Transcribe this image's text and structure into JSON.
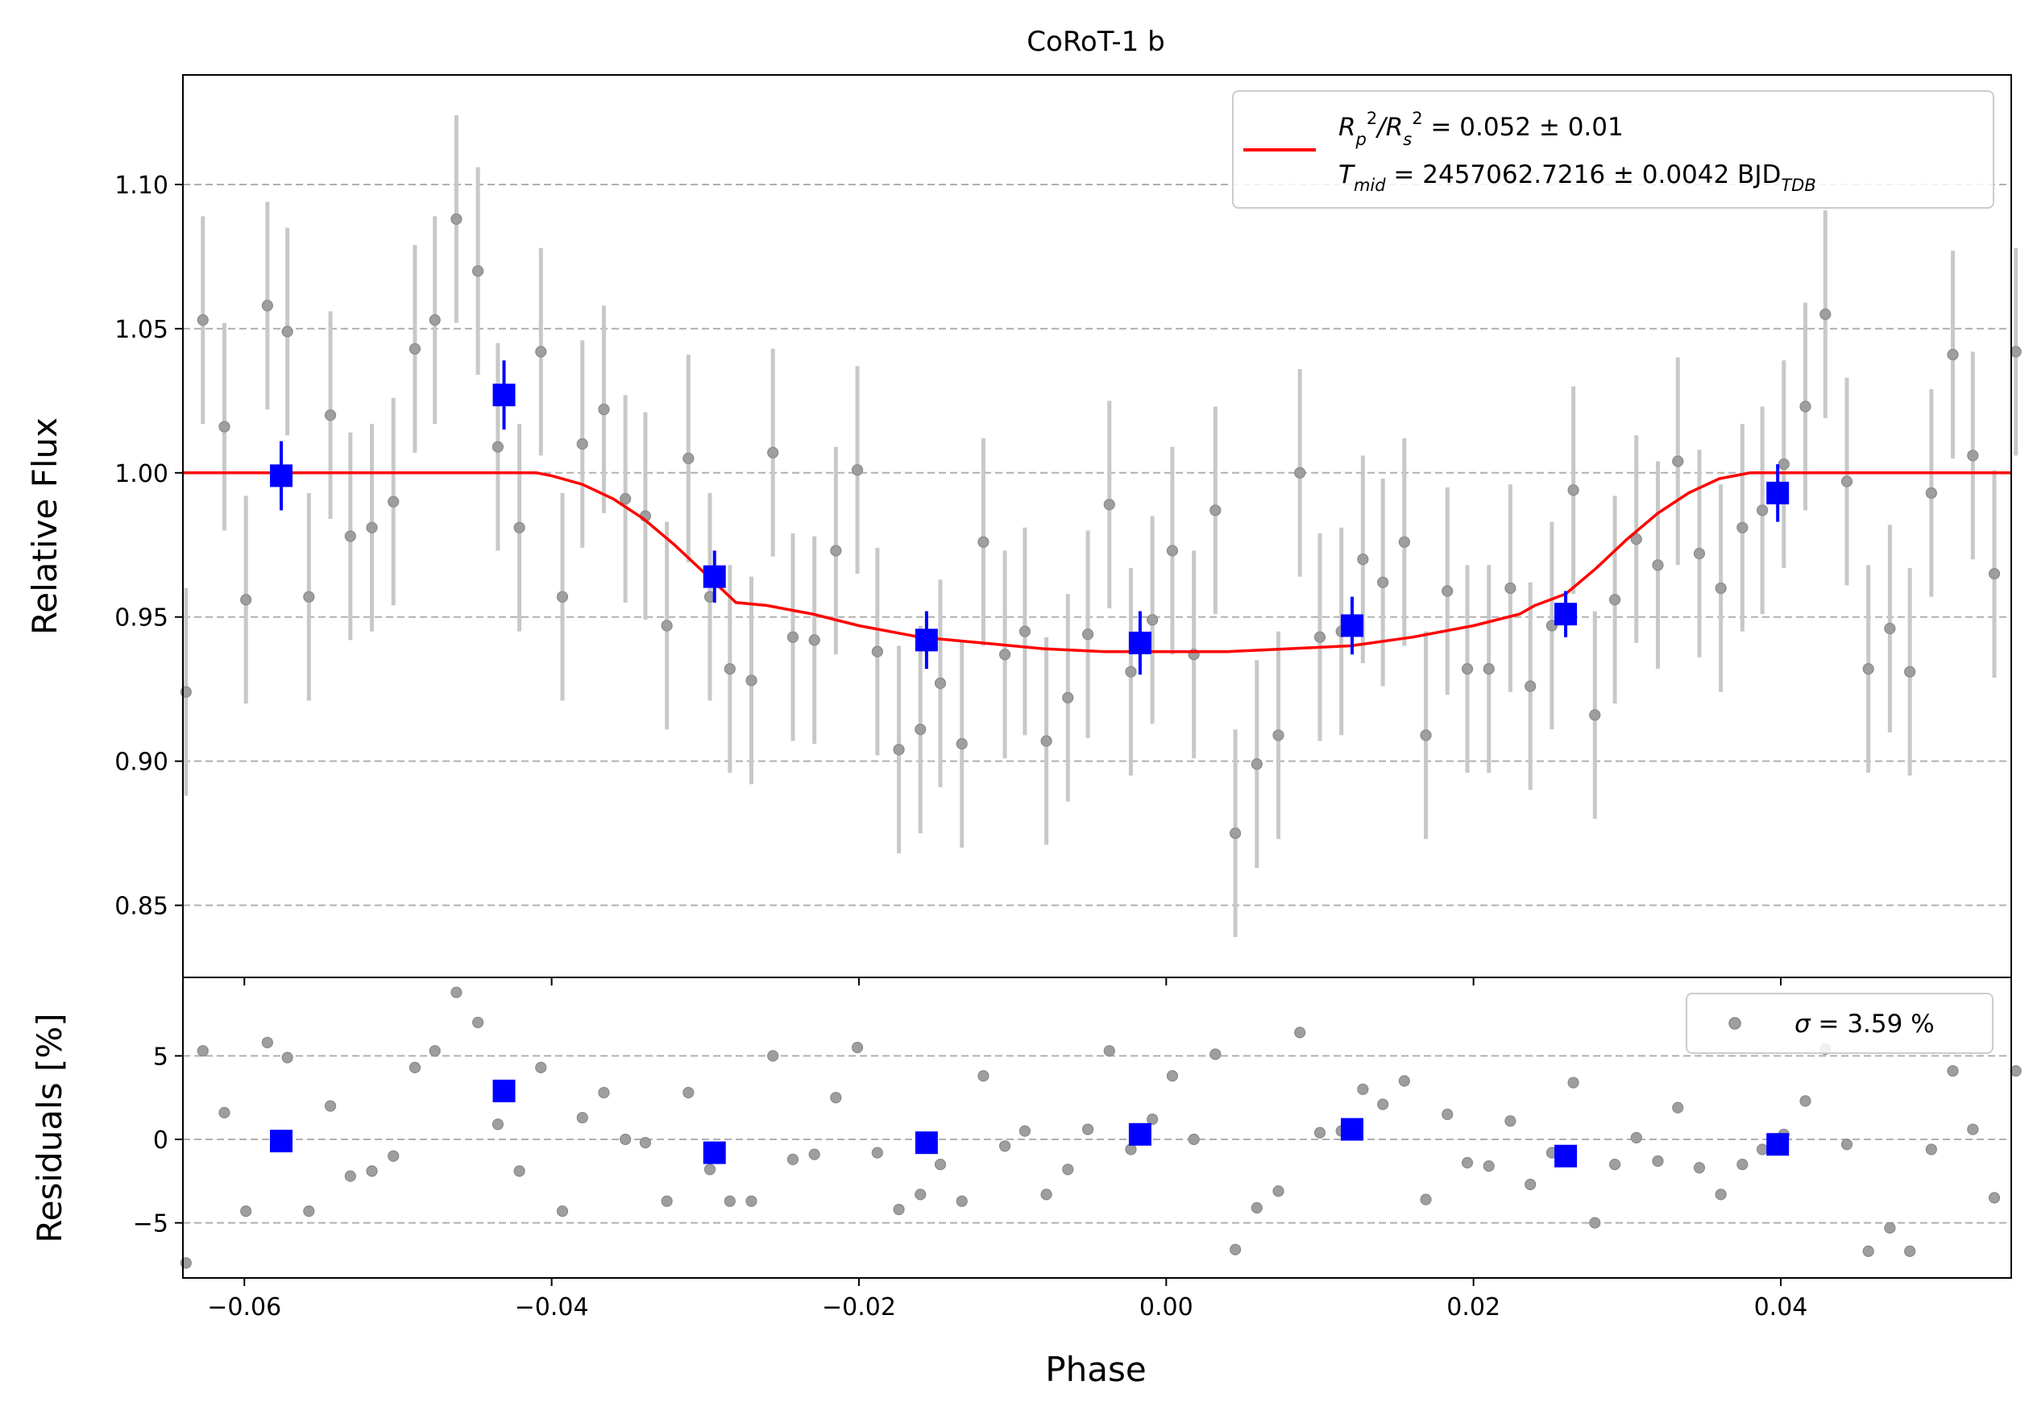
{
  "chart_data": [
    {
      "type": "scatter",
      "title": "CoRoT-1 b",
      "xlabel": "",
      "ylabel": "Relative Flux",
      "xlim": [
        -0.064,
        0.055
      ],
      "ylim": [
        0.825,
        1.138
      ],
      "x_ticks": [
        -0.06,
        -0.04,
        -0.02,
        0.0,
        0.02,
        0.04
      ],
      "y_ticks": [
        0.85,
        0.9,
        0.95,
        1.0,
        1.05,
        1.1
      ],
      "y_tick_labels": [
        "0.85",
        "0.90",
        "0.95",
        "1.00",
        "1.05",
        "1.10"
      ],
      "grid": "horizontal dashed",
      "legend_placement": "top-right",
      "legend": {
        "model_lines": [
          {
            "main": "R",
            "sub": "p",
            "sup": "2",
            "mid": "/R",
            "sub2": "s",
            "sup2": "2",
            "rest": " = 0.052 ± 0.01"
          },
          {
            "main": "T",
            "sub": "mid",
            "rest": " = 2457062.7216 ± 0.0042 BJD",
            "sub3": "TDB"
          }
        ]
      },
      "series": [
        {
          "kind": "raw",
          "color": "#9e9e9e",
          "errorbar_color": "#c8c8c8",
          "points": [
            [
              -0.0638,
              0.924,
              0.036
            ],
            [
              -0.0627,
              1.053,
              0.036
            ],
            [
              -0.0613,
              1.016,
              0.036
            ],
            [
              -0.0599,
              0.956,
              0.036
            ],
            [
              -0.0585,
              1.058,
              0.036
            ],
            [
              -0.0572,
              1.049,
              0.036
            ],
            [
              -0.0558,
              0.957,
              0.036
            ],
            [
              -0.0544,
              1.02,
              0.036
            ],
            [
              -0.0531,
              0.978,
              0.036
            ],
            [
              -0.0517,
              0.981,
              0.036
            ],
            [
              -0.0503,
              0.99,
              0.036
            ],
            [
              -0.0489,
              1.043,
              0.036
            ],
            [
              -0.0476,
              1.053,
              0.036
            ],
            [
              -0.0462,
              1.088,
              0.036
            ],
            [
              -0.0448,
              1.07,
              0.036
            ],
            [
              -0.0435,
              1.009,
              0.036
            ],
            [
              -0.0421,
              0.981,
              0.036
            ],
            [
              -0.0407,
              1.042,
              0.036
            ],
            [
              -0.0393,
              0.957,
              0.036
            ],
            [
              -0.038,
              1.01,
              0.036
            ],
            [
              -0.0366,
              1.022,
              0.036
            ],
            [
              -0.0352,
              0.991,
              0.036
            ],
            [
              -0.0339,
              0.985,
              0.036
            ],
            [
              -0.0325,
              0.947,
              0.036
            ],
            [
              -0.0311,
              1.005,
              0.036
            ],
            [
              -0.0297,
              0.957,
              0.036
            ],
            [
              -0.0284,
              0.932,
              0.036
            ],
            [
              -0.027,
              0.928,
              0.036
            ],
            [
              -0.0256,
              1.007,
              0.036
            ],
            [
              -0.0243,
              0.943,
              0.036
            ],
            [
              -0.0229,
              0.942,
              0.036
            ],
            [
              -0.0215,
              0.973,
              0.036
            ],
            [
              -0.0201,
              1.001,
              0.036
            ],
            [
              -0.0188,
              0.938,
              0.036
            ],
            [
              -0.0174,
              0.904,
              0.036
            ],
            [
              -0.016,
              0.911,
              0.036
            ],
            [
              -0.0147,
              0.927,
              0.036
            ],
            [
              -0.0133,
              0.906,
              0.036
            ],
            [
              -0.0119,
              0.976,
              0.036
            ],
            [
              -0.0105,
              0.937,
              0.036
            ],
            [
              -0.0092,
              0.945,
              0.036
            ],
            [
              -0.0078,
              0.907,
              0.036
            ],
            [
              -0.0064,
              0.922,
              0.036
            ],
            [
              -0.0051,
              0.944,
              0.036
            ],
            [
              -0.0037,
              0.989,
              0.036
            ],
            [
              -0.0023,
              0.931,
              0.036
            ],
            [
              -0.0009,
              0.949,
              0.036
            ],
            [
              0.0004,
              0.973,
              0.036
            ],
            [
              0.0018,
              0.937,
              0.036
            ],
            [
              0.0032,
              0.987,
              0.036
            ],
            [
              0.0045,
              0.875,
              0.036
            ],
            [
              0.0059,
              0.899,
              0.036
            ],
            [
              0.0073,
              0.909,
              0.036
            ],
            [
              0.0087,
              1.0,
              0.036
            ],
            [
              0.01,
              0.943,
              0.036
            ],
            [
              0.0114,
              0.945,
              0.036
            ],
            [
              0.0128,
              0.97,
              0.036
            ],
            [
              0.0141,
              0.962,
              0.036
            ],
            [
              0.0155,
              0.976,
              0.036
            ],
            [
              0.0169,
              0.909,
              0.036
            ],
            [
              0.0183,
              0.959,
              0.036
            ],
            [
              0.0196,
              0.932,
              0.036
            ],
            [
              0.021,
              0.932,
              0.036
            ],
            [
              0.0224,
              0.96,
              0.036
            ],
            [
              0.0237,
              0.926,
              0.036
            ],
            [
              0.0251,
              0.947,
              0.036
            ],
            [
              0.0265,
              0.994,
              0.036
            ],
            [
              0.0279,
              0.916,
              0.036
            ],
            [
              0.0292,
              0.956,
              0.036
            ],
            [
              0.0306,
              0.977,
              0.036
            ],
            [
              0.032,
              0.968,
              0.036
            ],
            [
              0.0333,
              1.004,
              0.036
            ],
            [
              0.0347,
              0.972,
              0.036
            ],
            [
              0.0361,
              0.96,
              0.036
            ],
            [
              0.0375,
              0.981,
              0.036
            ],
            [
              0.0388,
              0.987,
              0.036
            ],
            [
              0.0402,
              1.003,
              0.036
            ],
            [
              0.0416,
              1.023,
              0.036
            ],
            [
              0.0429,
              1.055,
              0.036
            ],
            [
              0.0443,
              0.997,
              0.036
            ],
            [
              0.0457,
              0.932,
              0.036
            ],
            [
              0.0471,
              0.946,
              0.036
            ],
            [
              0.0484,
              0.931,
              0.036
            ],
            [
              0.0498,
              0.993,
              0.036
            ],
            [
              0.0512,
              1.041,
              0.036
            ],
            [
              0.0525,
              1.006,
              0.036
            ],
            [
              0.0539,
              0.965,
              0.036
            ],
            [
              0.0553,
              1.042,
              0.036
            ]
          ]
        },
        {
          "kind": "binned",
          "color": "#0000ff",
          "points": [
            [
              -0.0576,
              0.999,
              0.012
            ],
            [
              -0.0431,
              1.027,
              0.012
            ],
            [
              -0.0294,
              0.964,
              0.009
            ],
            [
              -0.0156,
              0.942,
              0.01
            ],
            [
              -0.0017,
              0.941,
              0.011
            ],
            [
              0.0121,
              0.947,
              0.01
            ],
            [
              0.026,
              0.951,
              0.008
            ],
            [
              0.0398,
              0.993,
              0.01
            ]
          ]
        },
        {
          "kind": "model",
          "color": "#ff0000",
          "x": [
            -0.064,
            -0.042,
            -0.041,
            -0.04,
            -0.038,
            -0.036,
            -0.034,
            -0.032,
            -0.03,
            -0.028,
            -0.026,
            -0.024,
            -0.023,
            -0.02,
            -0.016,
            -0.012,
            -0.008,
            -0.004,
            0.0,
            0.004,
            0.008,
            0.012,
            0.016,
            0.02,
            0.023,
            0.024,
            0.026,
            0.028,
            0.03,
            0.032,
            0.034,
            0.036,
            0.038,
            0.04,
            0.041,
            0.042,
            0.055
          ],
          "y": [
            1.0,
            1.0,
            1.0,
            0.999,
            0.996,
            0.991,
            0.984,
            0.975,
            0.965,
            0.955,
            0.954,
            0.952,
            0.951,
            0.947,
            0.943,
            0.941,
            0.939,
            0.938,
            0.938,
            0.938,
            0.939,
            0.94,
            0.943,
            0.947,
            0.951,
            0.954,
            0.958,
            0.967,
            0.977,
            0.986,
            0.993,
            0.998,
            1.0,
            1.0,
            1.0,
            1.0,
            1.0
          ]
        }
      ]
    },
    {
      "type": "scatter",
      "title": "",
      "xlabel": "Phase",
      "ylabel": "Residuals [%]",
      "xlim": [
        -0.064,
        0.055
      ],
      "ylim": [
        -8.3,
        9.7
      ],
      "x_ticks": [
        -0.06,
        -0.04,
        -0.02,
        0.0,
        0.02,
        0.04
      ],
      "x_tick_labels": [
        "−0.06",
        "−0.04",
        "−0.02",
        "0.00",
        "0.02",
        "0.04"
      ],
      "y_ticks": [
        -5,
        0,
        5
      ],
      "y_tick_labels": [
        "−5",
        "0",
        "5"
      ],
      "grid": "horizontal dashed",
      "legend_placement": "top-right",
      "legend": {
        "sigma_symbol": "σ",
        "sigma_text": " = 3.59 %"
      },
      "series": [
        {
          "kind": "raw",
          "color": "#9e9e9e",
          "points": [
            [
              -0.0638,
              -7.4
            ],
            [
              -0.0627,
              5.3
            ],
            [
              -0.0613,
              1.6
            ],
            [
              -0.0599,
              -4.3
            ],
            [
              -0.0585,
              5.8
            ],
            [
              -0.0572,
              4.9
            ],
            [
              -0.0558,
              -4.3
            ],
            [
              -0.0544,
              2.0
            ],
            [
              -0.0531,
              -2.2
            ],
            [
              -0.0517,
              -1.9
            ],
            [
              -0.0503,
              -1.0
            ],
            [
              -0.0489,
              4.3
            ],
            [
              -0.0476,
              5.3
            ],
            [
              -0.0462,
              8.8
            ],
            [
              -0.0448,
              7.0
            ],
            [
              -0.0435,
              0.9
            ],
            [
              -0.0421,
              -1.9
            ],
            [
              -0.0407,
              4.3
            ],
            [
              -0.0393,
              -4.3
            ],
            [
              -0.038,
              1.3
            ],
            [
              -0.0366,
              2.8
            ],
            [
              -0.0352,
              0.0
            ],
            [
              -0.0339,
              -0.2
            ],
            [
              -0.0325,
              -3.7
            ],
            [
              -0.0311,
              2.8
            ],
            [
              -0.0297,
              -1.8
            ],
            [
              -0.0284,
              -3.7
            ],
            [
              -0.027,
              -3.7
            ],
            [
              -0.0256,
              5.0
            ],
            [
              -0.0243,
              -1.2
            ],
            [
              -0.0229,
              -0.9
            ],
            [
              -0.0215,
              2.5
            ],
            [
              -0.0201,
              5.5
            ],
            [
              -0.0188,
              -0.8
            ],
            [
              -0.0174,
              -4.2
            ],
            [
              -0.016,
              -3.3
            ],
            [
              -0.0147,
              -1.5
            ],
            [
              -0.0133,
              -3.7
            ],
            [
              -0.0119,
              3.8
            ],
            [
              -0.0105,
              -0.4
            ],
            [
              -0.0092,
              0.5
            ],
            [
              -0.0078,
              -3.3
            ],
            [
              -0.0064,
              -1.8
            ],
            [
              -0.0051,
              0.6
            ],
            [
              -0.0037,
              5.3
            ],
            [
              -0.0023,
              -0.6
            ],
            [
              -0.0009,
              1.2
            ],
            [
              0.0004,
              3.8
            ],
            [
              0.0018,
              0.0
            ],
            [
              0.0032,
              5.1
            ],
            [
              0.0045,
              -6.6
            ],
            [
              0.0059,
              -4.1
            ],
            [
              0.0073,
              -3.1
            ],
            [
              0.0087,
              6.4
            ],
            [
              0.01,
              0.4
            ],
            [
              0.0114,
              0.5
            ],
            [
              0.0128,
              3.0
            ],
            [
              0.0141,
              2.1
            ],
            [
              0.0155,
              3.5
            ],
            [
              0.0169,
              -3.6
            ],
            [
              0.0183,
              1.5
            ],
            [
              0.0196,
              -1.4
            ],
            [
              0.021,
              -1.6
            ],
            [
              0.0224,
              1.1
            ],
            [
              0.0237,
              -2.7
            ],
            [
              0.0251,
              -0.8
            ],
            [
              0.0265,
              3.4
            ],
            [
              0.0279,
              -5.0
            ],
            [
              0.0292,
              -1.5
            ],
            [
              0.0306,
              0.1
            ],
            [
              0.032,
              -1.3
            ],
            [
              0.0333,
              1.9
            ],
            [
              0.0347,
              -1.7
            ],
            [
              0.0361,
              -3.3
            ],
            [
              0.0375,
              -1.5
            ],
            [
              0.0388,
              -0.6
            ],
            [
              0.0402,
              0.3
            ],
            [
              0.0416,
              2.3
            ],
            [
              0.0429,
              5.4
            ],
            [
              0.0443,
              -0.3
            ],
            [
              0.0457,
              -6.7
            ],
            [
              0.0471,
              -5.3
            ],
            [
              0.0484,
              -6.7
            ],
            [
              0.0498,
              -0.6
            ],
            [
              0.0512,
              4.1
            ],
            [
              0.0525,
              0.6
            ],
            [
              0.0539,
              -3.5
            ],
            [
              0.0553,
              4.1
            ]
          ]
        },
        {
          "kind": "binned",
          "color": "#0000ff",
          "points": [
            [
              -0.0576,
              -0.1
            ],
            [
              -0.0431,
              2.9
            ],
            [
              -0.0294,
              -0.8
            ],
            [
              -0.0156,
              -0.2
            ],
            [
              -0.0017,
              0.3
            ],
            [
              0.0121,
              0.6
            ],
            [
              0.026,
              -1.0
            ],
            [
              0.0398,
              -0.3
            ]
          ]
        }
      ]
    }
  ]
}
